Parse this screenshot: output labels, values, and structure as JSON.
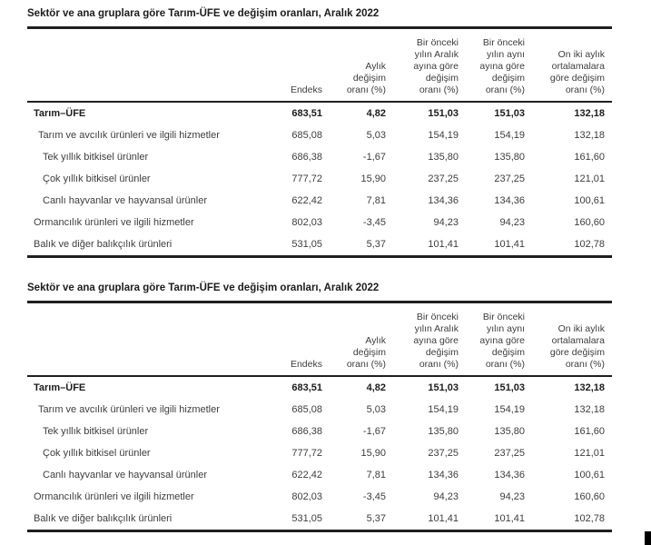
{
  "colors": {
    "background": "#ffffff",
    "text": "#3d3d3d",
    "emphasis": "#1c1c1c",
    "rule": "#1f1f1f",
    "corner_artifact": "#000000"
  },
  "table": {
    "title": "Sektör ve ana gruplara göre Tarım-ÜFE ve değişim oranları, Aralık 2022",
    "columns": [
      {
        "id": "endeks",
        "label": "Endeks"
      },
      {
        "id": "aylik-degisim",
        "label": "Aylık\ndeğişim\noranı (%)"
      },
      {
        "id": "onceki-yil-aralik",
        "label": "Bir önceki\nyılın Aralık\nayına göre\ndeğişim\noranı (%)"
      },
      {
        "id": "onceki-yil-ayni-ay",
        "label": "Bir önceki\nyılın aynı\nayına göre\ndeğişim\noranı (%)"
      },
      {
        "id": "on-iki-aylik-ortalama",
        "label": "On iki aylık\nortalamalara\ngöre değişim\noranı (%)"
      }
    ],
    "rows": [
      {
        "label": "Tarım–ÜFE",
        "indent": 0,
        "bold": true,
        "values": [
          "683,51",
          "4,82",
          "151,03",
          "151,03",
          "132,18"
        ]
      },
      {
        "label": "Tarım ve avcılık ürünleri ve ilgili hizmetler",
        "indent": 1,
        "bold": false,
        "values": [
          "685,08",
          "5,03",
          "154,19",
          "154,19",
          "132,18"
        ]
      },
      {
        "label": "Tek yıllık bitkisel ürünler",
        "indent": 2,
        "bold": false,
        "values": [
          "686,38",
          "-1,67",
          "135,80",
          "135,80",
          "161,60"
        ]
      },
      {
        "label": "Çok yıllık bitkisel ürünler",
        "indent": 2,
        "bold": false,
        "values": [
          "777,72",
          "15,90",
          "237,25",
          "237,25",
          "121,01"
        ]
      },
      {
        "label": "Canlı hayvanlar ve hayvansal ürünler",
        "indent": 2,
        "bold": false,
        "values": [
          "622,42",
          "7,81",
          "134,36",
          "134,36",
          "100,61"
        ]
      },
      {
        "label": "Ormancılık ürünleri ve ilgili hizmetler",
        "indent": 0,
        "bold": false,
        "values": [
          "802,03",
          "-3,45",
          "94,23",
          "94,23",
          "160,60"
        ]
      },
      {
        "label": "Balık ve diğer balıkçılık ürünleri",
        "indent": 0,
        "bold": false,
        "values": [
          "531,05",
          "5,37",
          "101,41",
          "101,41",
          "102,78"
        ]
      }
    ],
    "instances": 2
  }
}
